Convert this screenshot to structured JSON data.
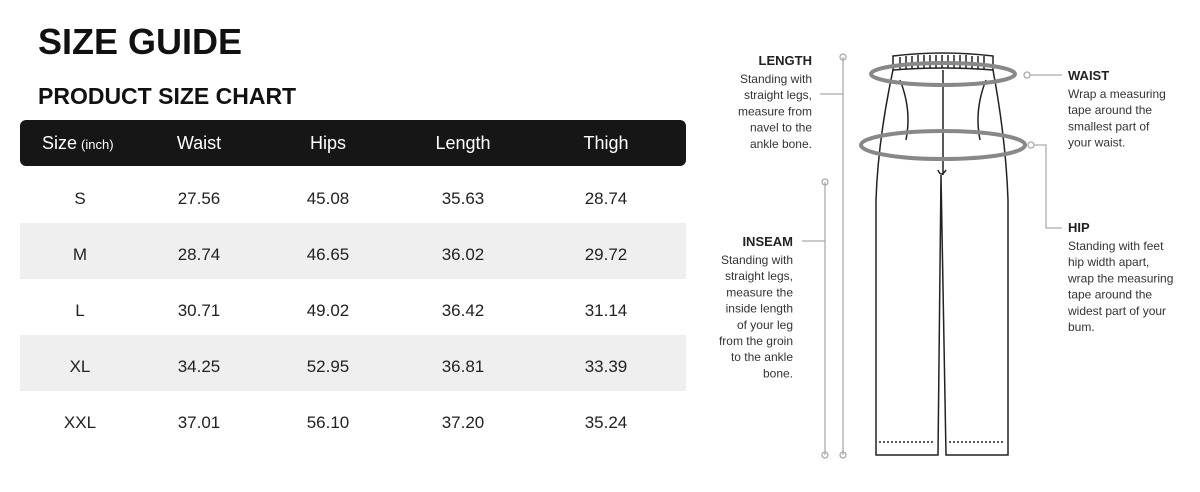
{
  "header": {
    "title": "SIZE GUIDE",
    "subtitle": "PRODUCT SIZE CHART"
  },
  "table": {
    "columns": [
      "Size",
      "Waist",
      "Hips",
      "Length",
      "Thigh"
    ],
    "size_unit": "(inch)",
    "rows": [
      [
        "S",
        "27.56",
        "45.08",
        "35.63",
        "28.74"
      ],
      [
        "M",
        "28.74",
        "46.65",
        "36.02",
        "29.72"
      ],
      [
        "L",
        "30.71",
        "49.02",
        "36.42",
        "31.14"
      ],
      [
        "XL",
        "34.25",
        "52.95",
        "36.81",
        "33.39"
      ],
      [
        "XXL",
        "37.01",
        "56.10",
        "37.20",
        "35.24"
      ]
    ]
  },
  "annotations": {
    "length": {
      "label": "LENGTH",
      "lines": [
        "Standing with",
        "straight legs,",
        "measure from",
        "navel to the",
        "ankle bone."
      ]
    },
    "inseam": {
      "label": "INSEAM",
      "lines": [
        "Standing with",
        "straight legs,",
        "measure the",
        "inside length",
        "of your leg",
        "from the groin",
        "to the ankle",
        "bone."
      ]
    },
    "waist": {
      "label": "WAIST",
      "lines": [
        "Wrap a measuring",
        "tape around the",
        "smallest part of",
        "your waist."
      ]
    },
    "hip": {
      "label": "HIP",
      "lines": [
        "Standing with feet",
        "hip width apart,",
        "wrap the measuring",
        "tape around the",
        "widest part of your",
        "bum."
      ]
    }
  }
}
